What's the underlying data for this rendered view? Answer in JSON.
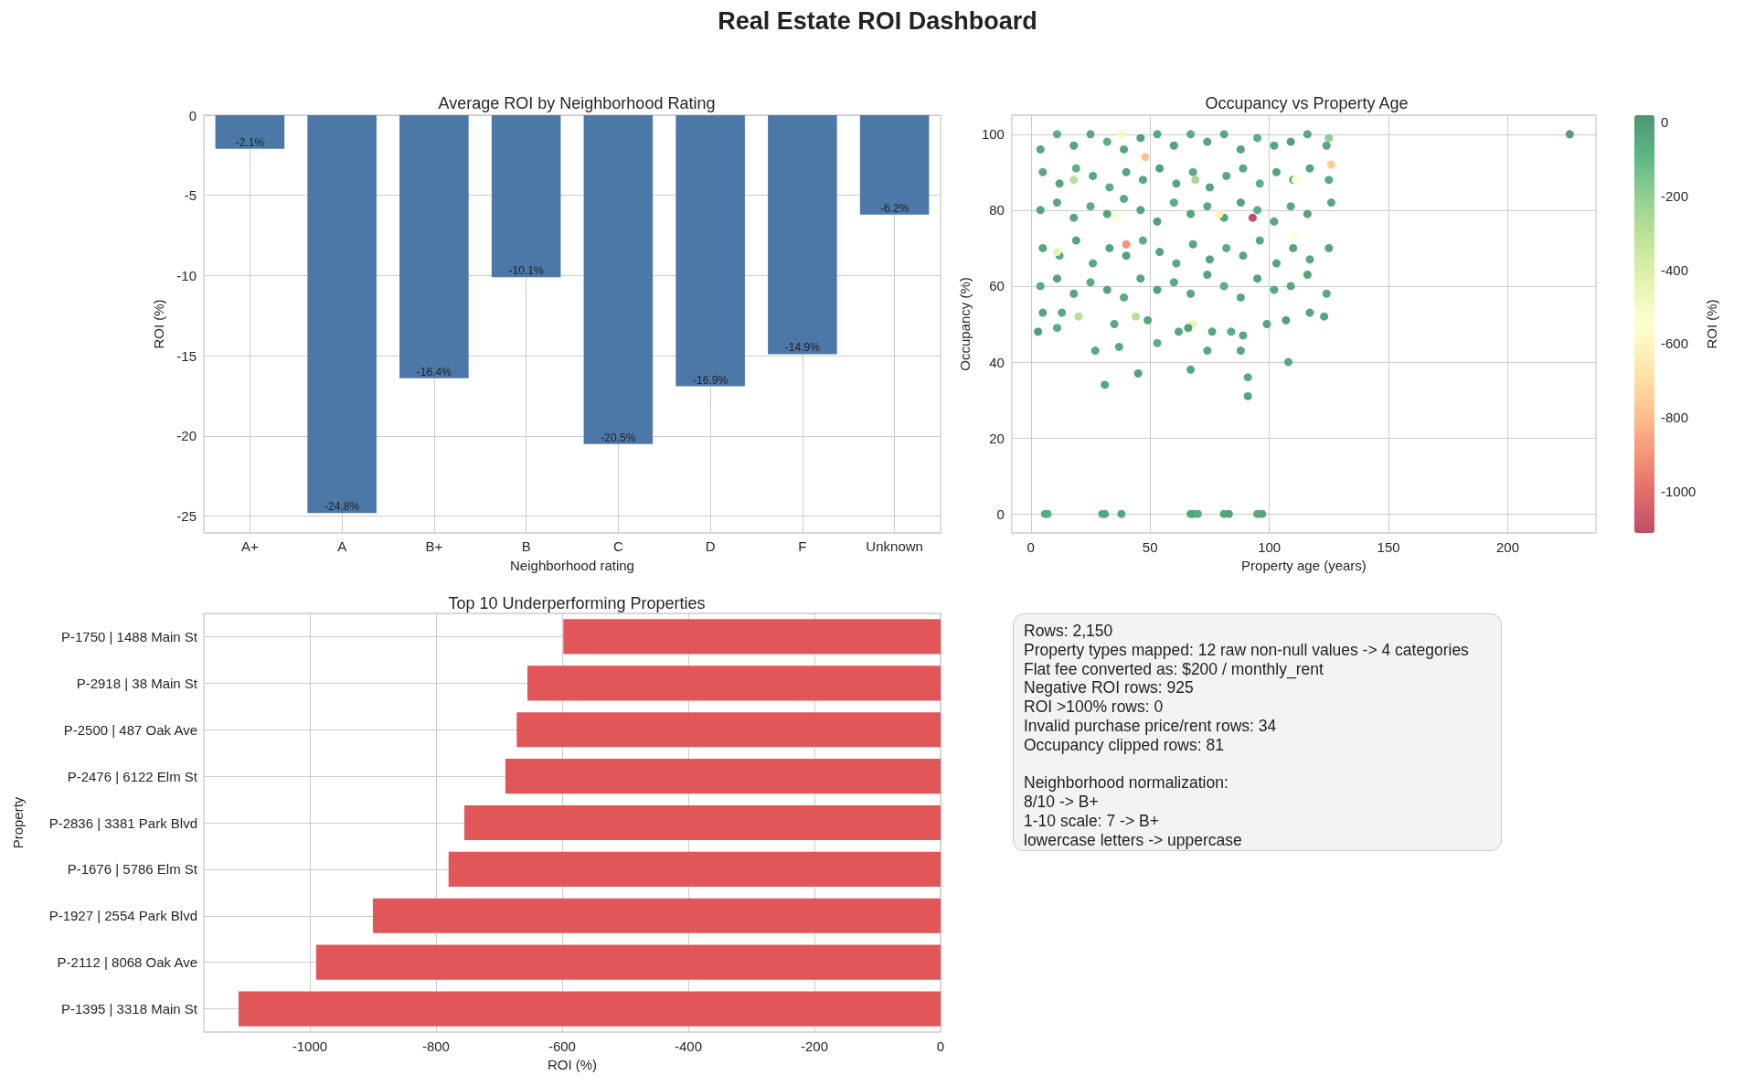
{
  "chart_data": [
    {
      "type": "other",
      "title": "Real Estate ROI Dashboard"
    },
    {
      "type": "bar",
      "title": "Average ROI by Neighborhood Rating",
      "xlabel": "Neighborhood rating",
      "ylabel": "ROI (%)",
      "categories": [
        "A+",
        "A",
        "B+",
        "B",
        "C",
        "D",
        "F",
        "Unknown"
      ],
      "values": [
        -2.1,
        -24.8,
        -16.4,
        -10.1,
        -20.5,
        -16.9,
        -14.9,
        -6.2
      ],
      "value_labels": [
        "-2.1%",
        "-24.8%",
        "-16.4%",
        "-10.1%",
        "-20.5%",
        "-16.9%",
        "-14.9%",
        "-6.2%"
      ],
      "color": "#4c78a8",
      "ylim": [
        -26.04,
        0
      ],
      "yticks": [
        -25,
        -20,
        -15,
        -10,
        -5,
        0
      ],
      "grid": true
    },
    {
      "type": "scatter",
      "title": "Occupancy vs Property Age",
      "xlabel": "Property age (years)",
      "ylabel": "Occupancy (%)",
      "clabel": "ROI (%)",
      "x": [
        4,
        11,
        18,
        25,
        32,
        39,
        46,
        53,
        60,
        67,
        74,
        81,
        88,
        95,
        102,
        109,
        116,
        124,
        5,
        12,
        19,
        26,
        33,
        40,
        47,
        54,
        61,
        68,
        75,
        82,
        89,
        96,
        103,
        110,
        117,
        125,
        4,
        11,
        18,
        25,
        32,
        39,
        46,
        53,
        60,
        67,
        74,
        81,
        88,
        95,
        102,
        109,
        116,
        126,
        5,
        12,
        19,
        26,
        33,
        40,
        47,
        54,
        61,
        68,
        75,
        82,
        89,
        96,
        103,
        110,
        117,
        125,
        4,
        11,
        18,
        25,
        32,
        39,
        46,
        53,
        60,
        67,
        74,
        81,
        88,
        95,
        102,
        109,
        116,
        124,
        93,
        40,
        48,
        38,
        79,
        126,
        111,
        18,
        36,
        11,
        110,
        125,
        69,
        3,
        11,
        27,
        31,
        37,
        45,
        53,
        67,
        74,
        88,
        91,
        91,
        108,
        62,
        20,
        44,
        68,
        5,
        35,
        49,
        84,
        89,
        76,
        66,
        99,
        107,
        117,
        123,
        13,
        6,
        7,
        30,
        31,
        38,
        67,
        68,
        70,
        81,
        83,
        95,
        97,
        226
      ],
      "values": [
        96,
        100,
        97,
        100,
        98,
        96,
        99,
        100,
        97,
        100,
        98,
        100,
        96,
        99,
        97,
        98,
        100,
        97,
        90,
        87,
        91,
        89,
        86,
        90,
        88,
        91,
        87,
        90,
        86,
        89,
        91,
        87,
        90,
        88,
        91,
        88,
        80,
        82,
        78,
        81,
        79,
        83,
        80,
        77,
        82,
        79,
        81,
        78,
        82,
        80,
        77,
        81,
        79,
        82,
        70,
        68,
        72,
        66,
        70,
        68,
        72,
        69,
        66,
        71,
        67,
        70,
        68,
        72,
        66,
        70,
        67,
        70,
        60,
        62,
        58,
        61,
        59,
        57,
        62,
        59,
        61,
        58,
        63,
        60,
        57,
        62,
        59,
        60,
        63,
        58,
        78,
        71,
        94,
        100,
        79,
        92,
        88,
        88,
        78,
        69,
        73,
        99,
        88,
        48,
        49,
        43,
        34,
        44,
        37,
        45,
        38,
        43,
        43,
        36,
        31,
        40,
        48,
        52,
        52,
        50,
        53,
        50,
        51,
        48,
        47,
        48,
        49,
        50,
        51,
        53,
        52,
        53,
        0,
        0,
        0,
        0,
        0,
        0,
        0,
        0,
        0,
        0,
        0,
        0,
        100
      ],
      "cvalues": [
        -40,
        -60,
        -30,
        -50,
        -70,
        -40,
        -20,
        -50,
        -30,
        -60,
        -40,
        -50,
        -30,
        -60,
        -40,
        -20,
        -50,
        -40,
        -50,
        -30,
        -70,
        -40,
        -60,
        -30,
        -50,
        -20,
        -40,
        -60,
        -30,
        -50,
        -40,
        -70,
        -30,
        -50,
        -40,
        -60,
        -30,
        -50,
        -40,
        -60,
        -30,
        -50,
        -40,
        -20,
        -60,
        -30,
        -50,
        -40,
        -30,
        -60,
        -40,
        -50,
        -30,
        -40,
        -40,
        -60,
        -30,
        -50,
        -40,
        -20,
        -60,
        -30,
        -50,
        -40,
        -30,
        -60,
        -40,
        -50,
        -30,
        -40,
        -50,
        -30,
        -50,
        -30,
        -40,
        -60,
        -30,
        -50,
        -40,
        -20,
        -50,
        -40,
        -30,
        -60,
        -40,
        -30,
        -50,
        -40,
        -30,
        -50,
        -1113,
        -900,
        -780,
        -600,
        -620,
        -750,
        -550,
        -300,
        -550,
        -450,
        -550,
        -200,
        -250,
        -10,
        -60,
        -50,
        -40,
        -50,
        -30,
        -60,
        -40,
        -50,
        -40,
        -50,
        -40,
        -50,
        -40,
        -300,
        -300,
        -450,
        -30,
        -50,
        -40,
        -60,
        -50,
        -40,
        -20,
        -50,
        -20,
        -30,
        -40,
        -50,
        -40,
        -60,
        -30,
        -50,
        -40,
        -50,
        -30,
        -60,
        -40,
        -20,
        -50,
        -30,
        -10
      ],
      "clim": [
        -1113,
        19
      ],
      "cticks": [
        -1000,
        -800,
        -600,
        -400,
        -200,
        0
      ],
      "xlim": [
        -8,
        237
      ],
      "xticks": [
        0,
        50,
        100,
        150,
        200
      ],
      "ylim": [
        -5,
        105
      ],
      "yticks": [
        0,
        20,
        40,
        60,
        80,
        100
      ],
      "marker": "circle",
      "grid": true
    },
    {
      "type": "bar",
      "orientation": "horizontal",
      "title": "Top 10 Underperforming Properties",
      "xlabel": "ROI (%)",
      "ylabel": "Property",
      "categories": [
        "P-1750 | 1488 Main St",
        "P-2918 | 38 Main St",
        "P-2500 | 487 Oak Ave",
        "P-2476 | 6122 Elm St",
        "P-2836 | 3381 Park Blvd",
        "P-1676 | 5786 Elm St",
        "P-1927 | 2554 Park Blvd",
        "P-2112 | 8068 Oak Ave",
        "P-1395 | 3318 Main St"
      ],
      "values": [
        -598,
        -655,
        -672,
        -690,
        -755,
        -780,
        -900,
        -990,
        -1113
      ],
      "color": "#e15759",
      "xlim": [
        -1168,
        0
      ],
      "xticks": [
        -1000,
        -800,
        -600,
        -400,
        -200,
        0
      ],
      "grid": true
    },
    {
      "type": "other",
      "annotations": [
        "Rows: 2,150\nProperty types mapped: 12 raw non-null values -> 4 categories\nFlat fee converted as: $200 / monthly_rent\nNegative ROI rows: 925\nROI >100% rows: 0\nInvalid purchase price/rent rows: 34\nOccupancy clipped rows: 81",
        "Neighborhood normalization:\n8/10 -> B+\n1-10 scale: 7 -> B+\nlowercase letters -> uppercase"
      ]
    }
  ]
}
